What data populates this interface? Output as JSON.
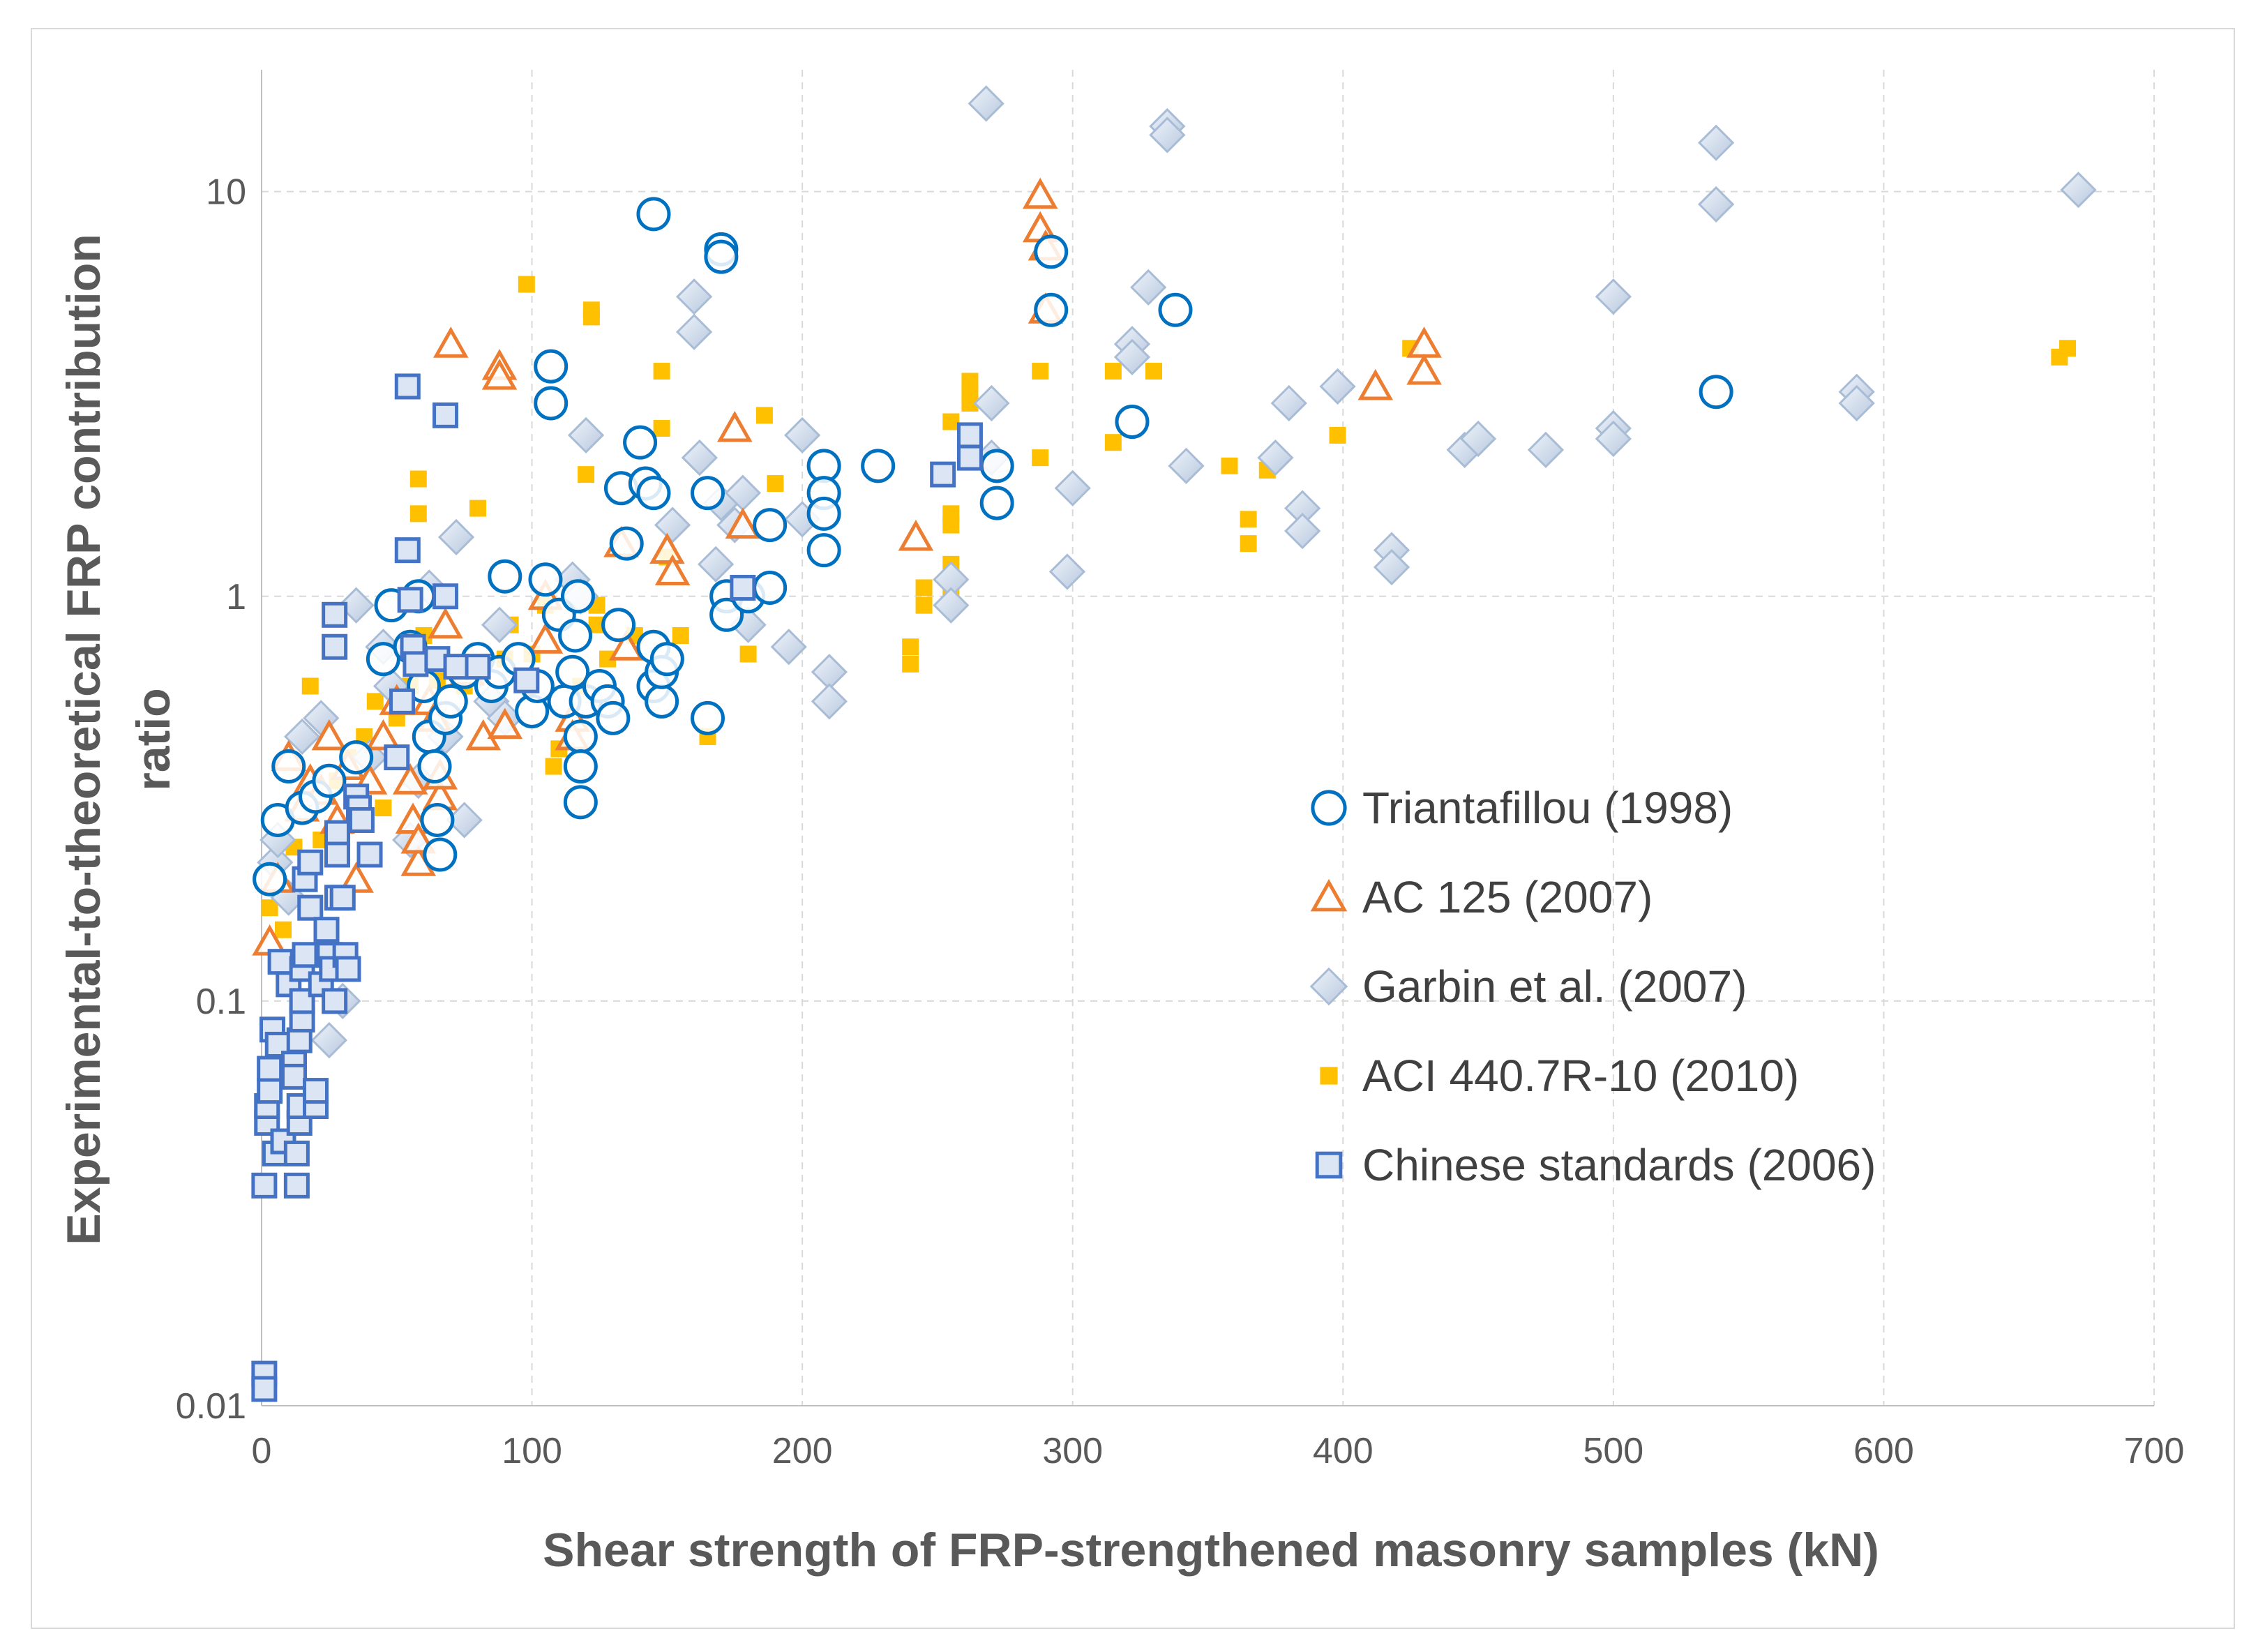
{
  "chart_data": {
    "type": "scatter",
    "title": "",
    "xlabel": "Shear strength of FRP-strengthened masonry samples (kN)",
    "ylabel": [
      "Experimental-to-theoretical FRP contribution",
      "ratio"
    ],
    "xlim": [
      0,
      700
    ],
    "ylim": [
      0.01,
      20
    ],
    "yscale": "log",
    "x_ticks": [
      0,
      100,
      200,
      300,
      400,
      500,
      600,
      700
    ],
    "y_ticks": [
      0.01,
      0.1,
      1,
      10
    ],
    "x_tick_labels": [
      "0",
      "100",
      "200",
      "300",
      "400",
      "500",
      "600",
      "700"
    ],
    "y_tick_labels": [
      "0.01",
      "0.1",
      "1",
      "10"
    ],
    "grid": "dashed major gridlines",
    "legend_position": "right-center",
    "series": [
      {
        "name": "Triantafillou (1998)",
        "marker": "circle-open",
        "color": "#0070C0",
        "points": [
          [
            3,
            0.2
          ],
          [
            6,
            0.28
          ],
          [
            10,
            0.38
          ],
          [
            15,
            0.3
          ],
          [
            20,
            0.32
          ],
          [
            25,
            0.35
          ],
          [
            35,
            0.4
          ],
          [
            45,
            0.7
          ],
          [
            48,
            0.95
          ],
          [
            55,
            0.75
          ],
          [
            58,
            1.0
          ],
          [
            60,
            0.6
          ],
          [
            62,
            0.45
          ],
          [
            64,
            0.38
          ],
          [
            65,
            0.28
          ],
          [
            66,
            0.23
          ],
          [
            68,
            0.5
          ],
          [
            70,
            0.55
          ],
          [
            75,
            0.65
          ],
          [
            80,
            0.7
          ],
          [
            85,
            0.6
          ],
          [
            88,
            0.65
          ],
          [
            90,
            1.12
          ],
          [
            95,
            0.7
          ],
          [
            100,
            0.52
          ],
          [
            102,
            0.6
          ],
          [
            105,
            1.1
          ],
          [
            107,
            3.7
          ],
          [
            107,
            3.0
          ],
          [
            110,
            0.9
          ],
          [
            112,
            0.55
          ],
          [
            115,
            0.65
          ],
          [
            116,
            0.8
          ],
          [
            117,
            1.0
          ],
          [
            118,
            0.45
          ],
          [
            118,
            0.38
          ],
          [
            118,
            0.31
          ],
          [
            120,
            0.55
          ],
          [
            125,
            0.6
          ],
          [
            128,
            0.55
          ],
          [
            130,
            0.5
          ],
          [
            132,
            0.85
          ],
          [
            133,
            1.85
          ],
          [
            135,
            1.35
          ],
          [
            140,
            2.4
          ],
          [
            142,
            1.9
          ],
          [
            145,
            1.8
          ],
          [
            145,
            0.75
          ],
          [
            145,
            0.6
          ],
          [
            148,
            0.55
          ],
          [
            148,
            0.65
          ],
          [
            150,
            0.7
          ],
          [
            145,
            8.8
          ],
          [
            165,
            1.8
          ],
          [
            165,
            0.5
          ],
          [
            170,
            7.2
          ],
          [
            170,
            6.9
          ],
          [
            172,
            1.0
          ],
          [
            172,
            0.9
          ],
          [
            180,
            1.0
          ],
          [
            188,
            1.5
          ],
          [
            188,
            1.05
          ],
          [
            208,
            2.1
          ],
          [
            208,
            1.8
          ],
          [
            208,
            1.6
          ],
          [
            208,
            1.3
          ],
          [
            228,
            2.1
          ],
          [
            272,
            2.1
          ],
          [
            272,
            1.7
          ],
          [
            292,
            7.1
          ],
          [
            292,
            5.1
          ],
          [
            322,
            2.7
          ],
          [
            338,
            5.1
          ],
          [
            538,
            3.2
          ]
        ]
      },
      {
        "name": "AC 125 (2007)",
        "marker": "triangle-open",
        "color": "#ED7D31",
        "points": [
          [
            3,
            0.14
          ],
          [
            6,
            0.2
          ],
          [
            10,
            0.4
          ],
          [
            15,
            0.3
          ],
          [
            18,
            0.35
          ],
          [
            22,
            0.33
          ],
          [
            25,
            0.45
          ],
          [
            28,
            0.28
          ],
          [
            32,
            0.38
          ],
          [
            35,
            0.2
          ],
          [
            40,
            0.35
          ],
          [
            45,
            0.45
          ],
          [
            50,
            0.55
          ],
          [
            55,
            0.35
          ],
          [
            56,
            0.28
          ],
          [
            58,
            0.22
          ],
          [
            58,
            0.25
          ],
          [
            62,
            0.55
          ],
          [
            64,
            0.5
          ],
          [
            66,
            0.32
          ],
          [
            66,
            0.36
          ],
          [
            68,
            0.85
          ],
          [
            70,
            4.2
          ],
          [
            76,
            0.65
          ],
          [
            82,
            0.45
          ],
          [
            88,
            3.7
          ],
          [
            88,
            3.5
          ],
          [
            90,
            0.48
          ],
          [
            105,
            1.0
          ],
          [
            105,
            0.78
          ],
          [
            115,
            0.5
          ],
          [
            115,
            0.45
          ],
          [
            133,
            1.35
          ],
          [
            135,
            0.75
          ],
          [
            150,
            1.3
          ],
          [
            152,
            1.15
          ],
          [
            175,
            2.6
          ],
          [
            178,
            1.5
          ],
          [
            242,
            1.4
          ],
          [
            288,
            9.8
          ],
          [
            288,
            8.1
          ],
          [
            290,
            7.3
          ],
          [
            290,
            5.1
          ],
          [
            412,
            3.3
          ],
          [
            430,
            4.2
          ],
          [
            430,
            3.6
          ]
        ]
      },
      {
        "name": "Garbin et al. (2007)",
        "marker": "diamond",
        "color": "#C5D5EA",
        "points": [
          [
            5,
            0.22
          ],
          [
            6,
            0.25
          ],
          [
            10,
            0.18
          ],
          [
            15,
            0.45
          ],
          [
            22,
            0.5
          ],
          [
            25,
            0.08
          ],
          [
            30,
            0.1
          ],
          [
            35,
            0.95
          ],
          [
            40,
            0.4
          ],
          [
            45,
            0.75
          ],
          [
            48,
            0.6
          ],
          [
            55,
            0.25
          ],
          [
            58,
            0.35
          ],
          [
            62,
            1.05
          ],
          [
            68,
            0.45
          ],
          [
            72,
            1.4
          ],
          [
            75,
            0.28
          ],
          [
            80,
            0.65
          ],
          [
            85,
            0.55
          ],
          [
            88,
            0.85
          ],
          [
            90,
            0.5
          ],
          [
            115,
            1.1
          ],
          [
            118,
            1.0
          ],
          [
            120,
            2.5
          ],
          [
            152,
            1.5
          ],
          [
            160,
            5.5
          ],
          [
            160,
            4.5
          ],
          [
            162,
            2.2
          ],
          [
            168,
            1.2
          ],
          [
            170,
            1.7
          ],
          [
            175,
            1.5
          ],
          [
            178,
            1.8
          ],
          [
            180,
            0.85
          ],
          [
            195,
            0.75
          ],
          [
            200,
            2.5
          ],
          [
            200,
            1.55
          ],
          [
            210,
            0.65
          ],
          [
            210,
            0.55
          ],
          [
            255,
            1.1
          ],
          [
            255,
            0.95
          ],
          [
            268,
            16.5
          ],
          [
            270,
            3.0
          ],
          [
            270,
            2.2
          ],
          [
            298,
            1.15
          ],
          [
            300,
            1.85
          ],
          [
            322,
            4.2
          ],
          [
            322,
            3.9
          ],
          [
            328,
            5.8
          ],
          [
            335,
            14.5
          ],
          [
            335,
            13.8
          ],
          [
            342,
            2.1
          ],
          [
            375,
            2.2
          ],
          [
            380,
            3.0
          ],
          [
            385,
            1.65
          ],
          [
            385,
            1.45
          ],
          [
            398,
            3.3
          ],
          [
            418,
            1.3
          ],
          [
            418,
            1.18
          ],
          [
            445,
            2.3
          ],
          [
            450,
            2.45
          ],
          [
            475,
            2.3
          ],
          [
            500,
            5.5
          ],
          [
            500,
            2.6
          ],
          [
            500,
            2.45
          ],
          [
            538,
            13.2
          ],
          [
            538,
            9.3
          ],
          [
            590,
            3.2
          ],
          [
            590,
            3.0
          ],
          [
            672,
            10.1
          ]
        ]
      },
      {
        "name": "ACI 440.7R-10 (2010)",
        "marker": "square-filled",
        "color": "#FFC000",
        "points": [
          [
            3,
            0.17
          ],
          [
            8,
            0.15
          ],
          [
            12,
            0.24
          ],
          [
            18,
            0.6
          ],
          [
            22,
            0.25
          ],
          [
            28,
            0.35
          ],
          [
            32,
            0.4
          ],
          [
            38,
            0.45
          ],
          [
            42,
            0.55
          ],
          [
            45,
            0.3
          ],
          [
            50,
            0.5
          ],
          [
            55,
            0.6
          ],
          [
            58,
            1.95
          ],
          [
            58,
            1.6
          ],
          [
            60,
            0.8
          ],
          [
            65,
            0.62
          ],
          [
            75,
            0.6
          ],
          [
            80,
            1.65
          ],
          [
            90,
            0.7
          ],
          [
            92,
            0.85
          ],
          [
            98,
            5.9
          ],
          [
            100,
            0.72
          ],
          [
            105,
            0.95
          ],
          [
            108,
            0.38
          ],
          [
            110,
            0.42
          ],
          [
            118,
            0.6
          ],
          [
            120,
            2.0
          ],
          [
            122,
            5.1
          ],
          [
            122,
            4.9
          ],
          [
            124,
            0.95
          ],
          [
            124,
            0.85
          ],
          [
            128,
            0.7
          ],
          [
            138,
            0.8
          ],
          [
            148,
            3.6
          ],
          [
            148,
            2.6
          ],
          [
            150,
            1.25
          ],
          [
            155,
            0.8
          ],
          [
            165,
            0.45
          ],
          [
            180,
            0.72
          ],
          [
            186,
            2.8
          ],
          [
            190,
            1.9
          ],
          [
            240,
            0.75
          ],
          [
            240,
            0.68
          ],
          [
            245,
            1.05
          ],
          [
            245,
            0.95
          ],
          [
            255,
            2.7
          ],
          [
            255,
            1.6
          ],
          [
            255,
            1.5
          ],
          [
            255,
            1.2
          ],
          [
            255,
            1.0
          ],
          [
            262,
            3.4
          ],
          [
            262,
            3.2
          ],
          [
            262,
            3.0
          ],
          [
            288,
            3.6
          ],
          [
            288,
            2.2
          ],
          [
            315,
            3.6
          ],
          [
            315,
            2.4
          ],
          [
            330,
            3.6
          ],
          [
            358,
            2.1
          ],
          [
            365,
            1.55
          ],
          [
            365,
            1.35
          ],
          [
            372,
            2.05
          ],
          [
            398,
            2.5
          ],
          [
            425,
            4.1
          ],
          [
            665,
            3.9
          ],
          [
            668,
            4.1
          ]
        ]
      },
      {
        "name": "Chinese standards (2006)",
        "marker": "square-open",
        "color": "#4472C4",
        "points": [
          [
            1,
            0.012
          ],
          [
            1,
            0.011
          ],
          [
            1,
            0.035
          ],
          [
            2,
            0.05
          ],
          [
            2,
            0.055
          ],
          [
            3,
            0.06
          ],
          [
            3,
            0.068
          ],
          [
            4,
            0.085
          ],
          [
            5,
            0.042
          ],
          [
            6,
            0.078
          ],
          [
            7,
            0.125
          ],
          [
            8,
            0.045
          ],
          [
            10,
            0.11
          ],
          [
            12,
            0.07
          ],
          [
            12,
            0.065
          ],
          [
            13,
            0.035
          ],
          [
            13,
            0.042
          ],
          [
            14,
            0.05
          ],
          [
            14,
            0.055
          ],
          [
            14,
            0.08
          ],
          [
            15,
            0.09
          ],
          [
            15,
            0.1
          ],
          [
            15,
            0.12
          ],
          [
            16,
            0.13
          ],
          [
            16,
            0.2
          ],
          [
            18,
            0.17
          ],
          [
            18,
            0.22
          ],
          [
            20,
            0.055
          ],
          [
            20,
            0.06
          ],
          [
            22,
            0.11
          ],
          [
            24,
            0.15
          ],
          [
            25,
            0.13
          ],
          [
            26,
            0.12
          ],
          [
            27,
            0.1
          ],
          [
            27,
            0.9
          ],
          [
            27,
            0.75
          ],
          [
            28,
            0.26
          ],
          [
            28,
            0.23
          ],
          [
            28,
            0.18
          ],
          [
            30,
            0.18
          ],
          [
            31,
            0.13
          ],
          [
            32,
            0.12
          ],
          [
            35,
            0.32
          ],
          [
            36,
            0.3
          ],
          [
            37,
            0.28
          ],
          [
            40,
            0.23
          ],
          [
            50,
            0.4
          ],
          [
            52,
            0.55
          ],
          [
            54,
            3.3
          ],
          [
            54,
            1.3
          ],
          [
            55,
            0.98
          ],
          [
            56,
            0.75
          ],
          [
            57,
            0.68
          ],
          [
            65,
            0.7
          ],
          [
            68,
            2.8
          ],
          [
            68,
            1.0
          ],
          [
            72,
            0.67
          ],
          [
            80,
            0.67
          ],
          [
            98,
            0.62
          ],
          [
            178,
            1.05
          ],
          [
            252,
            2.0
          ],
          [
            262,
            2.5
          ],
          [
            262,
            2.2
          ]
        ]
      }
    ]
  }
}
